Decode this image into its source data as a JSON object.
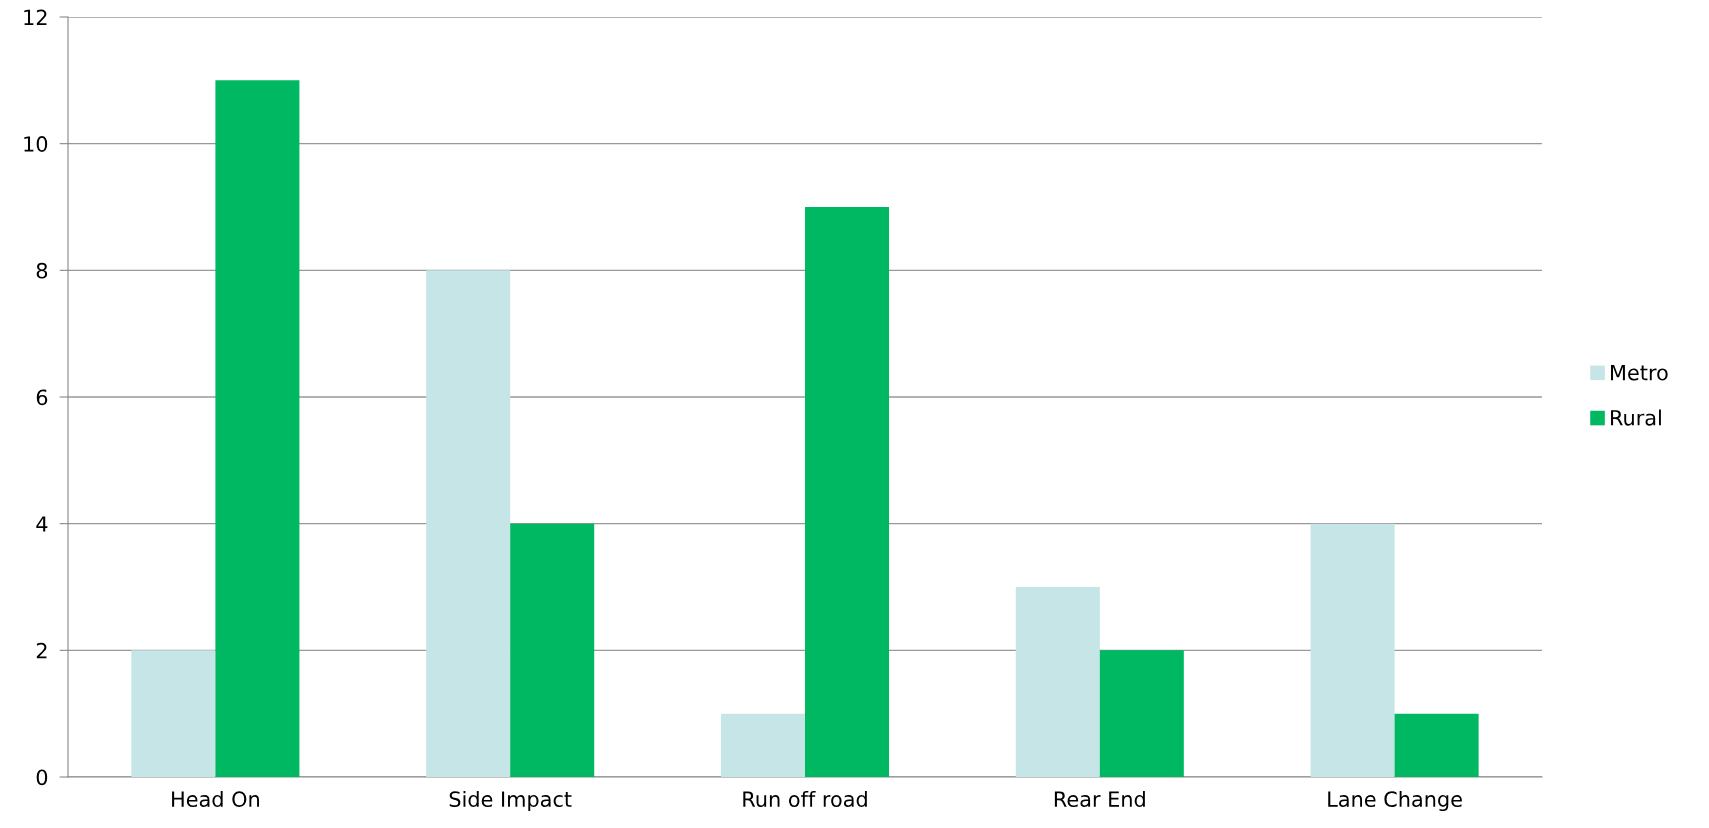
{
  "chart_data": {
    "type": "bar",
    "categories": [
      "Head On",
      "Side Impact",
      "Run off road",
      "Rear End",
      "Lane Change"
    ],
    "series": [
      {
        "name": "Metro",
        "color": "#c5e5e6",
        "values": [
          2,
          8,
          1,
          3,
          4
        ]
      },
      {
        "name": "Rural",
        "color": "#00b862",
        "values": [
          11,
          4,
          9,
          2,
          1
        ]
      }
    ],
    "ylim": [
      0,
      12
    ],
    "yticks": [
      0,
      2,
      4,
      6,
      8,
      10,
      12
    ],
    "grid": "y",
    "legend": "right"
  }
}
